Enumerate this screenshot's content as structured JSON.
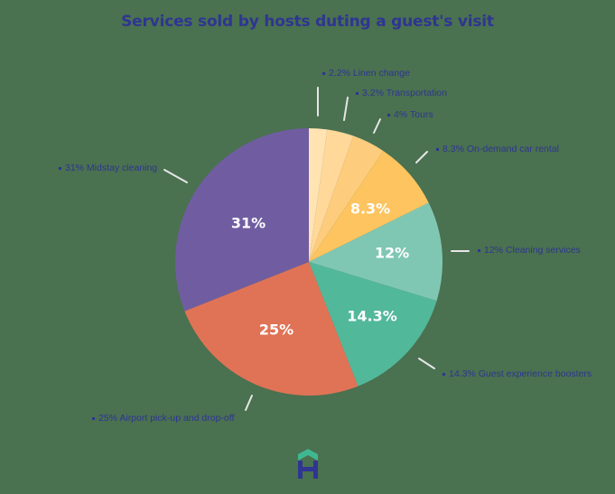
{
  "chart_data": {
    "type": "pie",
    "title": "Services sold by hosts duting a guest's visit",
    "start_angle_deg": 0,
    "direction": "clockwise",
    "slices": [
      {
        "label": "Linen change",
        "value": 2.2,
        "display": "2.2%",
        "color": "#ffe3b3",
        "legend": "2.2% Linen change"
      },
      {
        "label": "Transportation",
        "value": 3.2,
        "display": "3.2%",
        "color": "#ffd89a",
        "legend": "3.2% Transportation"
      },
      {
        "label": "Tours",
        "value": 4,
        "display": "4%",
        "color": "#fdcc7c",
        "legend": "4% Tours"
      },
      {
        "label": "On-demand car rental",
        "value": 8.3,
        "display": "8.3%",
        "color": "#fdc45f",
        "legend": "8.3% On-demand car rental"
      },
      {
        "label": "Cleaning services",
        "value": 12,
        "display": "12%",
        "color": "#80c7b3",
        "legend": "12% Cleaning services"
      },
      {
        "label": "Guest experience boosters",
        "value": 14.3,
        "display": "14.3%",
        "color": "#52b89a",
        "legend": "14.3% Guest experience boosters"
      },
      {
        "label": "Airport pick-up and drop-off",
        "value": 25,
        "display": "25%",
        "color": "#e07356",
        "legend": "25% Airport pick-up and drop-off"
      },
      {
        "label": "Midstay cleaning",
        "value": 31,
        "display": "31%",
        "color": "#705da1",
        "legend": "31% Midstay cleaning"
      }
    ],
    "labels_inside": [
      "8.3%",
      "12%",
      "14.3%",
      "25%",
      "31%"
    ],
    "legend_position": "callouts around pie"
  },
  "colors": {
    "background": "#4a7150",
    "title": "#2f3592",
    "leader_line": "#e8e8e8",
    "logo_roof": "#3fb892",
    "logo_h": "#2f3592"
  },
  "logo": {
    "name": "house-h-logo"
  }
}
